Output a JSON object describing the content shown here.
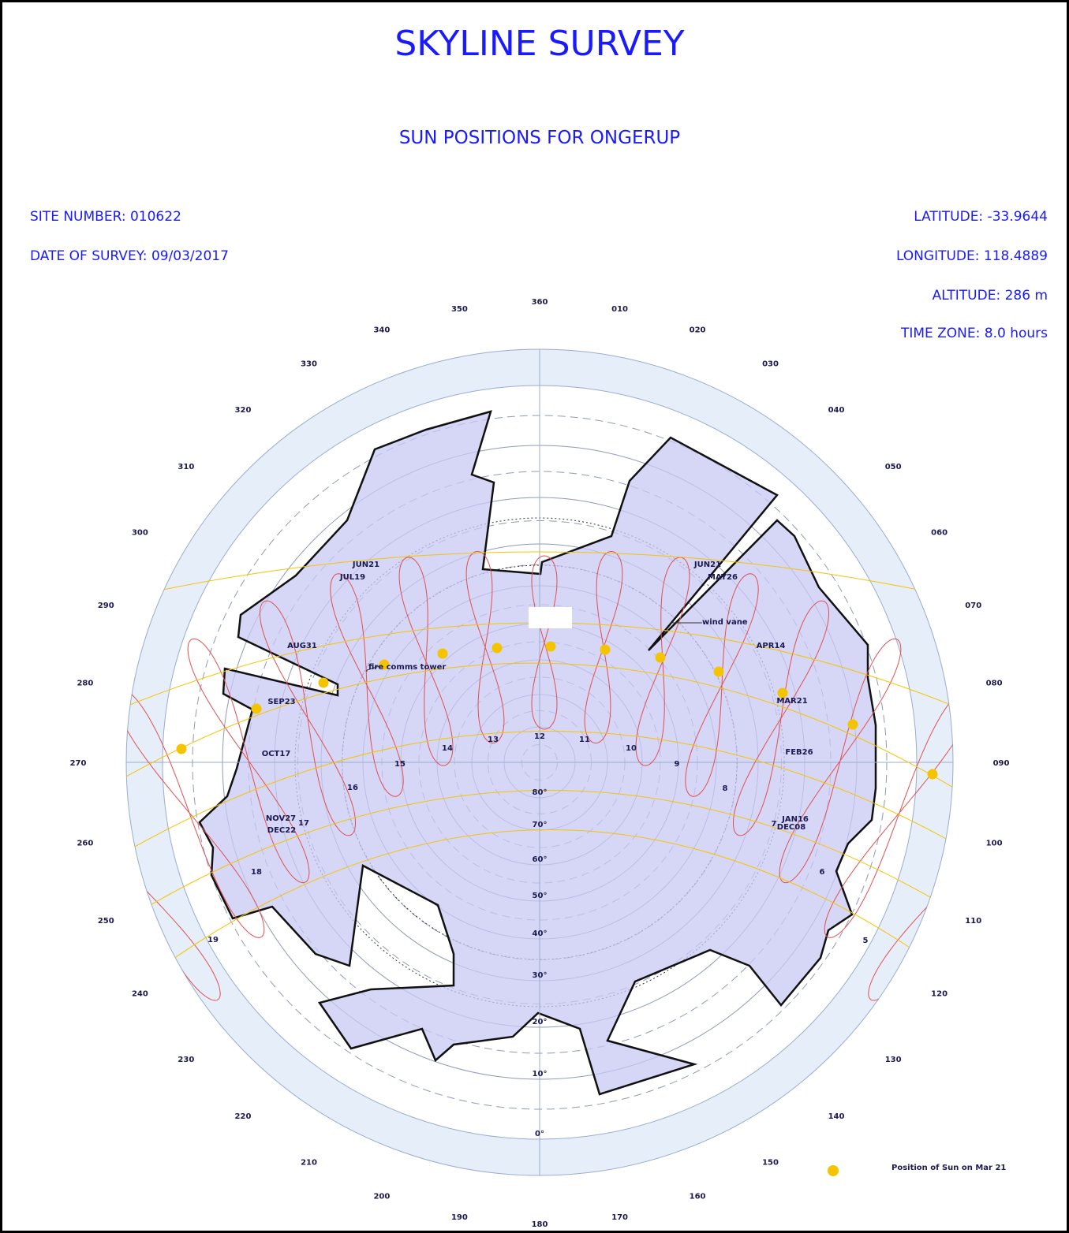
{
  "title": "SKYLINE SURVEY",
  "subtitle": "SUN POSITIONS FOR ONGERUP",
  "site": {
    "site_number": "SITE NUMBER: 010622",
    "date_of_survey": "DATE OF SURVEY: 09/03/2017",
    "latitude": "LATITUDE: -33.9644",
    "longitude": "LONGITUDE: 118.4889",
    "altitude": "ALTITUDE: 286 m",
    "time_zone": "TIME ZONE: 8.0 hours"
  },
  "diagram": {
    "azimuth_labels": [
      "360",
      "010",
      "020",
      "030",
      "040",
      "050",
      "060",
      "070",
      "080",
      "090",
      "100",
      "110",
      "120",
      "130",
      "140",
      "150",
      "160",
      "170",
      "180",
      "190",
      "200",
      "210",
      "220",
      "230",
      "240",
      "250",
      "260",
      "270",
      "280",
      "290",
      "300",
      "310",
      "320",
      "330",
      "340",
      "350"
    ],
    "altitude_labels": [
      "0°",
      "10°",
      "20°",
      "30°",
      "40°",
      "50°",
      "60°",
      "70°",
      "80°"
    ],
    "hour_labels": [
      "5",
      "6",
      "7",
      "8",
      "9",
      "10",
      "11",
      "12",
      "13",
      "14",
      "15",
      "16",
      "17",
      "18",
      "19"
    ],
    "date_labels": [
      "JUN21",
      "JUL19",
      "AUG31",
      "SEP23",
      "OCT17",
      "NOV27",
      "DEC22",
      "JUN21",
      "MAY26",
      "APR14",
      "MAR21",
      "FEB26",
      "JAN16",
      "DEC08"
    ],
    "annotations": [
      "fire comms tower",
      "wind vane"
    ],
    "legend": "Position of Sun on Mar 21"
  }
}
